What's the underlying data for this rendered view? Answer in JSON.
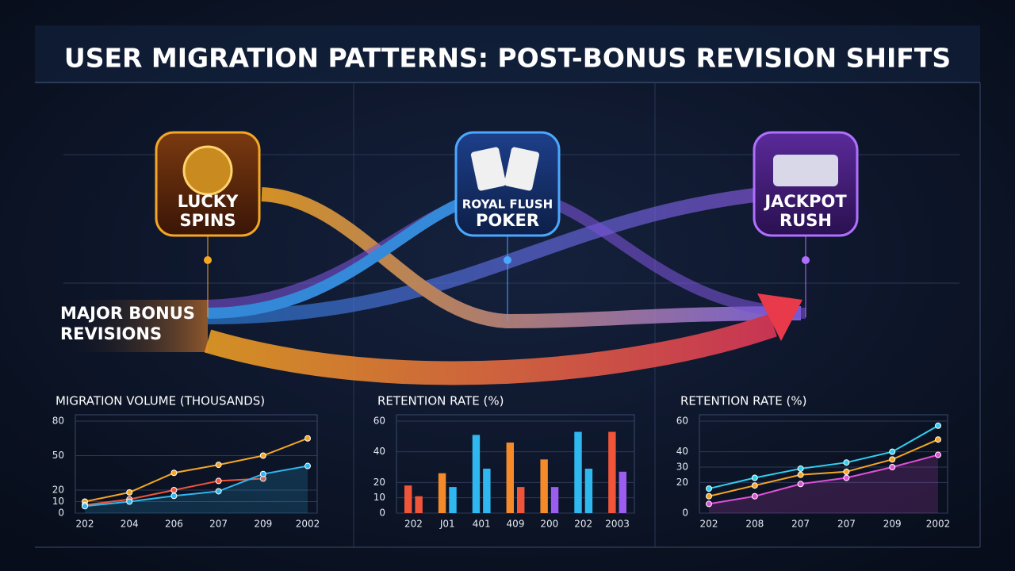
{
  "header": {
    "title": "USER MIGRATION PATTERNS: POST-BONUS REVISION SHIFTS"
  },
  "apps": [
    {
      "label_lines": [
        "LUCKY",
        "SPINS"
      ]
    },
    {
      "label_lines": [
        "ROYAL FLUSH",
        "POKER"
      ]
    },
    {
      "label_lines": [
        "JACKPOT",
        "RUSH"
      ]
    }
  ],
  "callout": {
    "label_lines": [
      "MAJOR BONUS",
      "REVISIONS"
    ]
  },
  "chart_data": [
    {
      "type": "line",
      "title": "MIGRATION VOLUME (THOUSANDS)",
      "categories": [
        "202",
        "204",
        "206",
        "207",
        "209",
        "2002"
      ],
      "ylim": [
        0,
        80
      ],
      "yticks": [
        0,
        10,
        20,
        50,
        80
      ],
      "series": [
        {
          "color": "#f5a623",
          "values": [
            10,
            18,
            35,
            42,
            50,
            65
          ]
        },
        {
          "color": "#f0553a",
          "values": [
            7,
            12,
            20,
            28,
            30,
            null
          ]
        },
        {
          "color": "#2fb8f0",
          "values": [
            6,
            10,
            15,
            19,
            34,
            41
          ]
        }
      ]
    },
    {
      "type": "bar",
      "title": "RETENTION RATE (%)",
      "categories": [
        "202",
        "J01",
        "401",
        "409",
        "200",
        "202",
        "2003"
      ],
      "ylim": [
        0,
        60
      ],
      "yticks": [
        0,
        10,
        20,
        40,
        60
      ],
      "series": [
        {
          "colors": [
            "#f0553a",
            "#f58a2a",
            "#2fb8f0",
            "#f58a2a",
            "#f58a2a",
            "#2fb8f0",
            "#f0553a"
          ],
          "values": [
            18,
            26,
            51,
            46,
            35,
            53,
            53
          ]
        },
        {
          "colors": [
            "#f0553a",
            "#2fb8f0",
            "#2fb8f0",
            "#f0553a",
            "#9b5cf0",
            "#2fb8f0",
            "#9b5cf0"
          ],
          "values": [
            11,
            17,
            29,
            17,
            17,
            29,
            27
          ]
        }
      ]
    },
    {
      "type": "line",
      "title": "RETENTION RATE (%)",
      "categories": [
        "202",
        "208",
        "207",
        "207",
        "209",
        "2002"
      ],
      "ylim": [
        0,
        60
      ],
      "yticks": [
        0,
        20,
        30,
        40,
        60
      ],
      "series": [
        {
          "color": "#2fd0f0",
          "values": [
            16,
            23,
            29,
            33,
            40,
            57
          ]
        },
        {
          "color": "#f5a623",
          "values": [
            11,
            18,
            25,
            27,
            35,
            48
          ]
        },
        {
          "color": "#e050d8",
          "values": [
            6,
            11,
            19,
            23,
            30,
            38
          ]
        }
      ]
    }
  ]
}
